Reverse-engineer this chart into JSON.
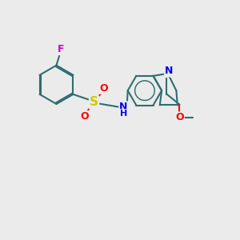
{
  "bg_color": "#ebebeb",
  "bond_color": "#2d6e6e",
  "lw": 1.5,
  "atom_colors": {
    "F": "#cc00cc",
    "O": "#ff0000",
    "S": "#cccc00",
    "N": "#0000ee",
    "C": "#2d6e6e"
  },
  "fs": 9,
  "dbo": 0.055
}
